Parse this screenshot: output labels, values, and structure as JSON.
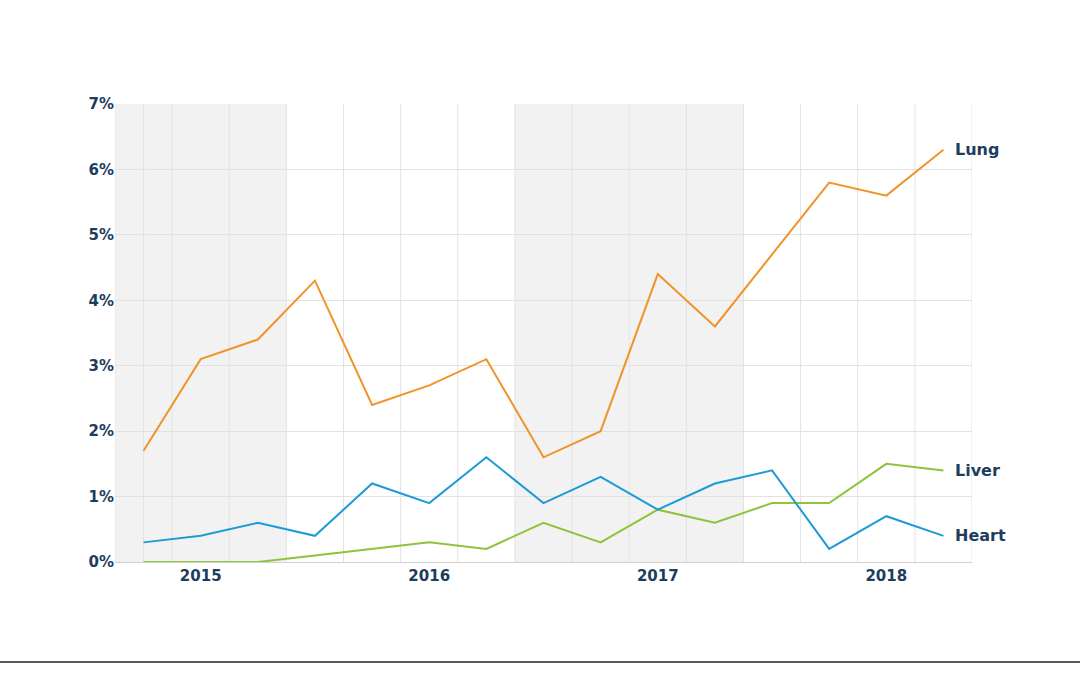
{
  "chart_data": {
    "type": "line",
    "categories": [
      null,
      "2015",
      null,
      null,
      null,
      "2016",
      null,
      null,
      null,
      "2017",
      null,
      null,
      null,
      "2018",
      null
    ],
    "series": [
      {
        "name": "Lung",
        "color": "#f0942a",
        "values": [
          1.7,
          3.1,
          3.4,
          4.3,
          2.4,
          2.7,
          3.1,
          1.6,
          2.0,
          4.4,
          3.6,
          4.7,
          5.8,
          5.6,
          6.3
        ]
      },
      {
        "name": "Liver",
        "color": "#8cc43c",
        "values": [
          0,
          0,
          0,
          0.1,
          0.2,
          0.3,
          0.2,
          0.6,
          0.3,
          0.8,
          0.6,
          0.9,
          0.9,
          1.5,
          1.4
        ]
      },
      {
        "name": "Heart",
        "color": "#1e9ad6",
        "values": [
          0.3,
          0.4,
          0.6,
          0.4,
          1.2,
          0.9,
          1.6,
          0.9,
          1.3,
          0.8,
          1.2,
          1.4,
          0.2,
          0.7,
          0.4
        ]
      }
    ],
    "ylim": [
      0,
      7
    ],
    "yticks": [
      {
        "value": 0,
        "label": "0%"
      },
      {
        "value": 1,
        "label": "1%"
      },
      {
        "value": 2,
        "label": "2%"
      },
      {
        "value": 3,
        "label": "3%"
      },
      {
        "value": 4,
        "label": "4%"
      },
      {
        "value": 5,
        "label": "5%"
      },
      {
        "value": 6,
        "label": "6%"
      },
      {
        "value": 7,
        "label": "7%"
      }
    ],
    "grid": true
  }
}
